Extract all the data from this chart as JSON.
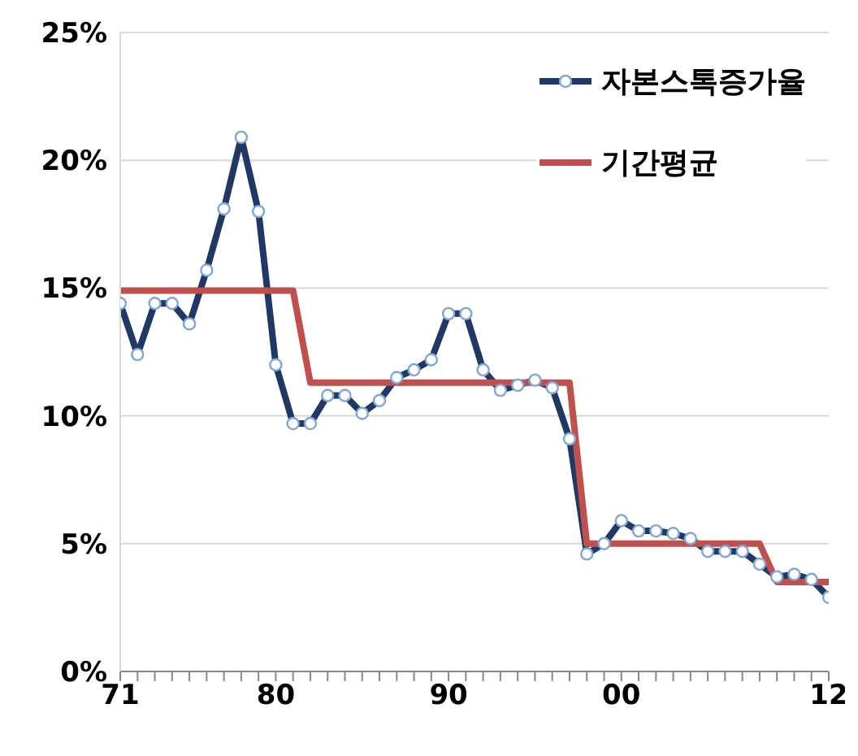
{
  "chart_data": {
    "type": "line",
    "x": [
      1971,
      1972,
      1973,
      1974,
      1975,
      1976,
      1977,
      1978,
      1979,
      1980,
      1981,
      1982,
      1983,
      1984,
      1985,
      1986,
      1987,
      1988,
      1989,
      1990,
      1991,
      1992,
      1993,
      1994,
      1995,
      1996,
      1997,
      1998,
      1999,
      2000,
      2001,
      2002,
      2003,
      2004,
      2005,
      2006,
      2007,
      2008,
      2009,
      2010,
      2011,
      2012
    ],
    "series": [
      {
        "name": "자본스톡증가율",
        "color": "#1f3864",
        "marker": "circle",
        "values": [
          14.4,
          12.4,
          14.4,
          14.4,
          13.6,
          15.7,
          18.1,
          20.9,
          18.0,
          12.0,
          9.7,
          9.7,
          10.8,
          10.8,
          10.1,
          10.6,
          11.5,
          11.8,
          12.2,
          14.0,
          14.0,
          11.8,
          11.0,
          11.2,
          11.4,
          11.1,
          9.1,
          4.6,
          5.0,
          5.9,
          5.5,
          5.5,
          5.4,
          5.2,
          4.7,
          4.7,
          4.7,
          4.2,
          3.7,
          3.8,
          3.6,
          2.9
        ]
      },
      {
        "name": "기간평균",
        "color": "#c0504d",
        "marker": "none",
        "x": [
          1971,
          1981,
          1982,
          1997,
          1998,
          2008,
          2009,
          2012
        ],
        "values": [
          14.9,
          14.9,
          11.3,
          11.3,
          5.0,
          5.0,
          3.5,
          3.5
        ]
      }
    ],
    "xlim": [
      1971,
      2012
    ],
    "xticks": [
      {
        "value": 1971,
        "label": "71"
      },
      {
        "value": 1972,
        "label": null
      },
      {
        "value": 1973,
        "label": null
      },
      {
        "value": 1974,
        "label": null
      },
      {
        "value": 1975,
        "label": null
      },
      {
        "value": 1976,
        "label": null
      },
      {
        "value": 1977,
        "label": null
      },
      {
        "value": 1978,
        "label": null
      },
      {
        "value": 1979,
        "label": null
      },
      {
        "value": 1980,
        "label": "80"
      },
      {
        "value": 1981,
        "label": null
      },
      {
        "value": 1982,
        "label": null
      },
      {
        "value": 1983,
        "label": null
      },
      {
        "value": 1984,
        "label": null
      },
      {
        "value": 1985,
        "label": null
      },
      {
        "value": 1986,
        "label": null
      },
      {
        "value": 1987,
        "label": null
      },
      {
        "value": 1988,
        "label": null
      },
      {
        "value": 1989,
        "label": null
      },
      {
        "value": 1990,
        "label": "90"
      },
      {
        "value": 1991,
        "label": null
      },
      {
        "value": 1992,
        "label": null
      },
      {
        "value": 1993,
        "label": null
      },
      {
        "value": 1994,
        "label": null
      },
      {
        "value": 1995,
        "label": null
      },
      {
        "value": 1996,
        "label": null
      },
      {
        "value": 1997,
        "label": null
      },
      {
        "value": 1998,
        "label": null
      },
      {
        "value": 1999,
        "label": null
      },
      {
        "value": 2000,
        "label": "00"
      },
      {
        "value": 2001,
        "label": null
      },
      {
        "value": 2002,
        "label": null
      },
      {
        "value": 2003,
        "label": null
      },
      {
        "value": 2004,
        "label": null
      },
      {
        "value": 2005,
        "label": null
      },
      {
        "value": 2006,
        "label": null
      },
      {
        "value": 2007,
        "label": null
      },
      {
        "value": 2008,
        "label": null
      },
      {
        "value": 2009,
        "label": null
      },
      {
        "value": 2010,
        "label": null
      },
      {
        "value": 2011,
        "label": null
      },
      {
        "value": 2012,
        "label": "12"
      }
    ],
    "ylim": [
      0,
      25
    ],
    "yticks": [
      {
        "value": 0,
        "label": "0%"
      },
      {
        "value": 5,
        "label": "5%"
      },
      {
        "value": 10,
        "label": "10%"
      },
      {
        "value": 15,
        "label": "15%"
      },
      {
        "value": 20,
        "label": "20%"
      },
      {
        "value": 25,
        "label": "25%"
      }
    ],
    "grid": "y",
    "legend": "top right",
    "line_style": "solid"
  }
}
